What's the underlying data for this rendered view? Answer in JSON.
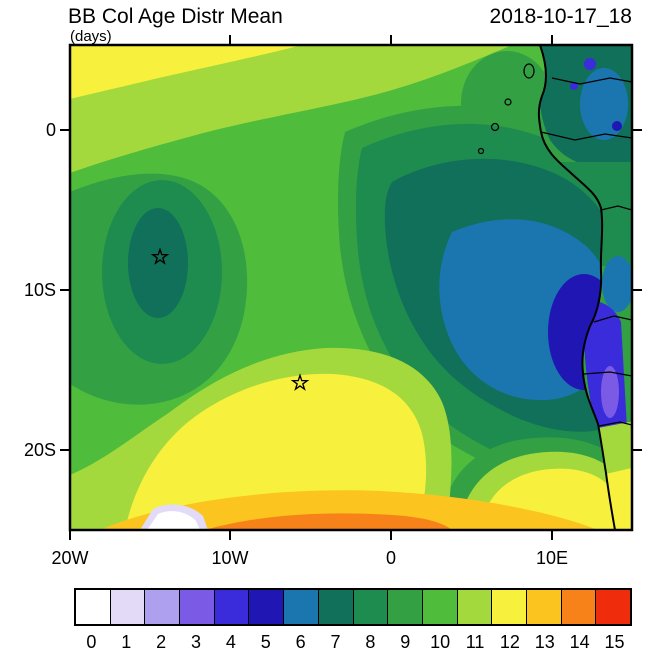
{
  "header": {
    "title": "BB Col Age Distr Mean",
    "date": "2018-10-17_18",
    "units_label": "(days)"
  },
  "chart_data": {
    "type": "heatmap",
    "title": "BB Col Age Distr Mean",
    "timestamp_label": "2018-10-17_18",
    "units": "days",
    "x_tick_labels": [
      "20W",
      "10W",
      "0",
      "10E"
    ],
    "y_tick_labels": [
      "0",
      "10S",
      "20S"
    ],
    "lon_range_deg": [
      -20,
      15
    ],
    "lat_range_deg": [
      -25,
      5.3
    ],
    "grid": false,
    "legend_position": "bottom",
    "levels": [
      0,
      1,
      2,
      3,
      4,
      5,
      6,
      7,
      8,
      9,
      10,
      11,
      12,
      13,
      14,
      15
    ],
    "palette": [
      "#FFFFFF",
      "#E2DAF6",
      "#AFA0EF",
      "#7B5BE6",
      "#3A2BDB",
      "#1F16B4",
      "#1B76B0",
      "#10705A",
      "#1F8C4F",
      "#33A143",
      "#4FBC3C",
      "#A4D93E",
      "#F7F13D",
      "#FCC41E",
      "#F8821A",
      "#EF2C0C"
    ],
    "markers": [
      {
        "type": "star",
        "lon_deg": -14.4,
        "lat_deg": -7.9
      },
      {
        "type": "star",
        "lon_deg": -5.6,
        "lat_deg": -15.8
      }
    ],
    "field_summary": [
      {
        "value_days": "11-12",
        "where": "yellow-green/yellow band along the northern edge of the domain, thickest in the northwest corner"
      },
      {
        "value_days": "12",
        "where": "broad yellow maximum centered near 6W, 16S (around the southern star marker) extending toward the southern boundary"
      },
      {
        "value_days": "13-14",
        "where": "gold/orange strip along the southern boundary between roughly 15W and 5E"
      },
      {
        "value_days": "0-1",
        "where": "tiny white pocket on the southern boundary near 14W, 25S"
      },
      {
        "value_days": "7-8",
        "where": "local dark-green minimum near 14W, 8S around the northern star marker"
      },
      {
        "value_days": "6-7",
        "where": "large dark teal minimum over the eastern ocean between about 3W-12E and 3S-20S off the Angola coast"
      },
      {
        "value_days": "4-5",
        "where": "deep blue pockets hugging the Angola/Namibia coast near 11-13E, 10-19S"
      },
      {
        "value_days": "11-12",
        "where": "yellow wedge over the ocean and land in the southeast corner near the Namibian coast"
      },
      {
        "value_days": "9-10",
        "where": "green background over the remainder of the domain and most of the land"
      }
    ],
    "overlays": {
      "coastline_visible": true,
      "country_borders_visible": true,
      "islands_visible": true
    }
  }
}
